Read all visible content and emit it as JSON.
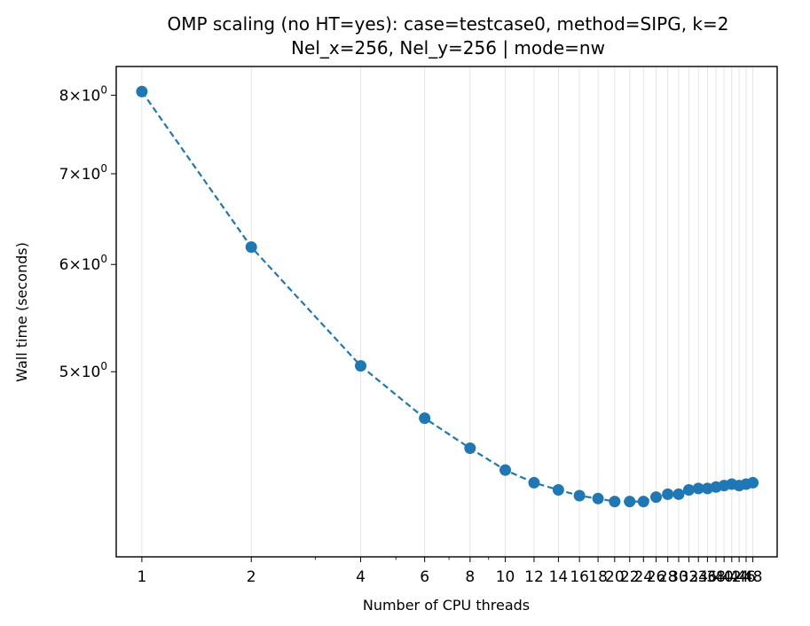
{
  "chart_data": {
    "type": "line",
    "title_lines": [
      "OMP scaling (no HT=yes): case=testcase0, method=SIPG, k=2",
      "Nel_x=256, Nel_y=256  |  mode=nw"
    ],
    "xlabel": "Number of CPU threads",
    "ylabel": "Wall time (seconds)",
    "xscale": "log",
    "yscale": "log",
    "xlim": [
      0.85,
      56
    ],
    "ylim": [
      3.65,
      8.4
    ],
    "grid": "x",
    "line_style": "dashed",
    "marker": "circle",
    "color": "#1f77b4",
    "x_ticks": [
      1,
      2,
      4,
      6,
      8,
      10,
      12,
      14,
      16,
      18,
      20,
      22,
      24,
      26,
      28,
      30,
      32,
      34,
      36,
      38,
      40,
      42,
      44,
      46,
      48
    ],
    "x_tick_labels": [
      "1",
      "2",
      "4",
      "6",
      "8",
      "10",
      "12",
      "14",
      "16",
      "18",
      "20",
      "22",
      "24",
      "26",
      "28",
      "30",
      "32",
      "34",
      "36",
      "38",
      "40",
      "42",
      "44",
      "46",
      "48"
    ],
    "y_ticks": [
      {
        "value": 8,
        "mantissa": "8",
        "base": "10",
        "exp": "0"
      },
      {
        "value": 7,
        "mantissa": "7",
        "base": "10",
        "exp": "0"
      },
      {
        "value": 6,
        "mantissa": "6",
        "base": "10",
        "exp": "0"
      },
      {
        "value": 5,
        "mantissa": "5",
        "base": "10",
        "exp": "0"
      }
    ],
    "series": [
      {
        "x": [
          1,
          2,
          4,
          6,
          8,
          10,
          12,
          14,
          16,
          18,
          20,
          22,
          24,
          26,
          28,
          30,
          32,
          34,
          36,
          38,
          40,
          42,
          44,
          46,
          48
        ],
        "y": [
          8.05,
          6.18,
          5.05,
          4.62,
          4.39,
          4.23,
          4.14,
          4.09,
          4.05,
          4.03,
          4.01,
          4.01,
          4.01,
          4.04,
          4.06,
          4.06,
          4.09,
          4.1,
          4.1,
          4.11,
          4.12,
          4.13,
          4.12,
          4.13,
          4.14
        ]
      }
    ]
  }
}
